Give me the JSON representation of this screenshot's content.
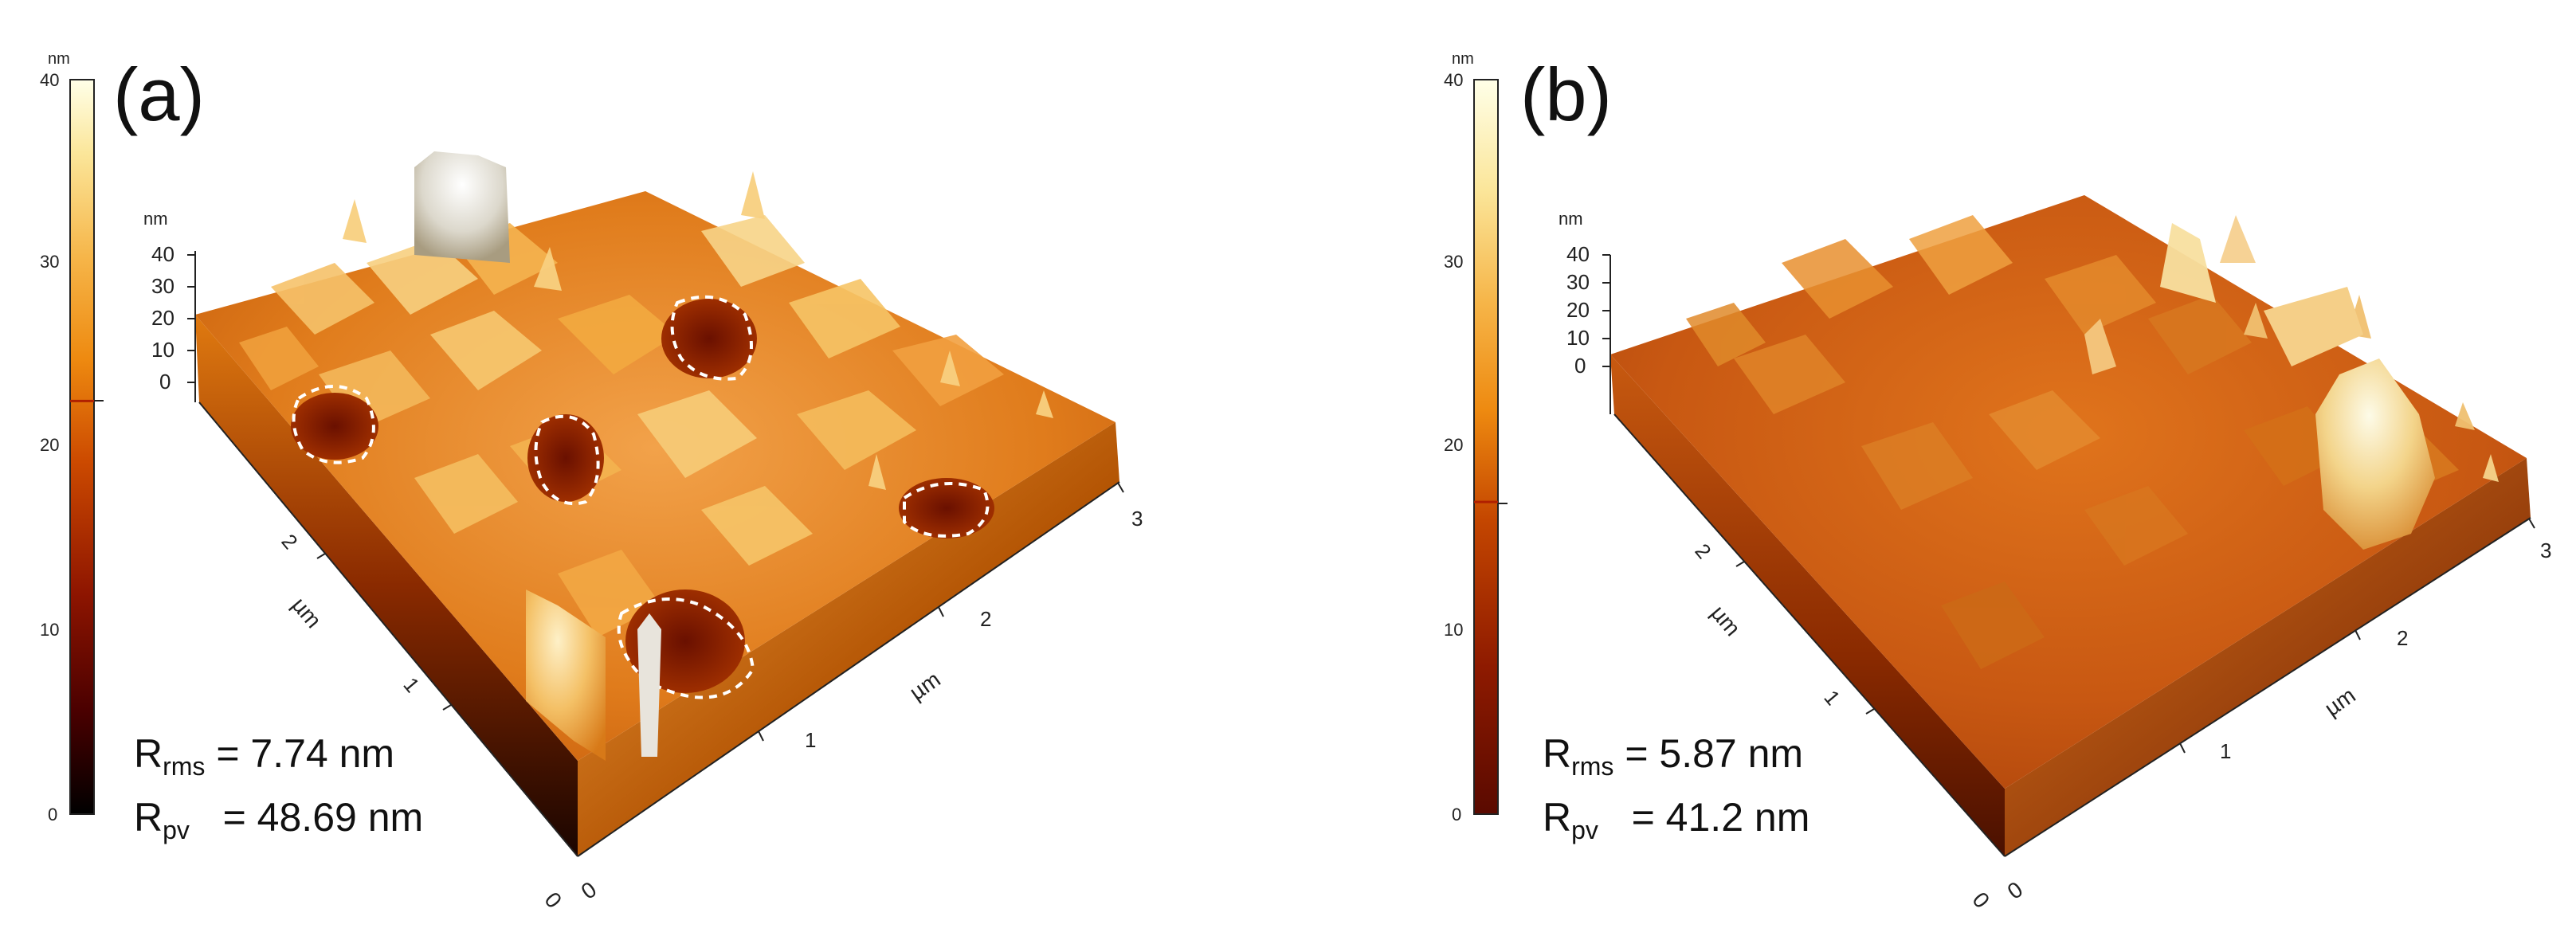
{
  "colorscale": {
    "unit": "nm",
    "ticks": [
      "0",
      "10",
      "20",
      "30",
      "40"
    ],
    "stops": [
      "#000000",
      "#4a0000",
      "#8e1500",
      "#cc4a00",
      "#ee8a10",
      "#f6b64a",
      "#fbe69a",
      "#ffffe8"
    ]
  },
  "panels": [
    {
      "label": "(a)",
      "marker_value": 22.5,
      "z_axis": {
        "unit": "nm",
        "ticks": [
          "40",
          "30",
          "20",
          "10",
          "0"
        ]
      },
      "x_axis": {
        "unit": "µm",
        "ticks": [
          "1",
          "2",
          "3"
        ]
      },
      "y_axis": {
        "unit": "µm",
        "ticks": [
          "1",
          "2"
        ]
      },
      "origin_labels": [
        "0",
        "0"
      ],
      "stats": {
        "rrms_symbol": "R",
        "rrms_sub": "rms",
        "rrms_value": "= 7.74 nm",
        "rpv_symbol": "R",
        "rpv_sub": "pv",
        "rpv_value": "  = 48.69 nm"
      }
    },
    {
      "label": "(b)",
      "marker_value": 17,
      "z_axis": {
        "unit": "nm",
        "ticks": [
          "40",
          "30",
          "20",
          "10",
          "0"
        ]
      },
      "x_axis": {
        "unit": "µm",
        "ticks": [
          "1",
          "2",
          "3"
        ]
      },
      "y_axis": {
        "unit": "µm",
        "ticks": [
          "1",
          "2"
        ]
      },
      "origin_labels": [
        "0",
        "0"
      ],
      "stats": {
        "rrms_symbol": "R",
        "rrms_sub": "rms",
        "rrms_value": "= 5.87 nm",
        "rpv_symbol": "R",
        "rpv_sub": "pv",
        "rpv_value": "  = 41.2 nm"
      }
    }
  ]
}
